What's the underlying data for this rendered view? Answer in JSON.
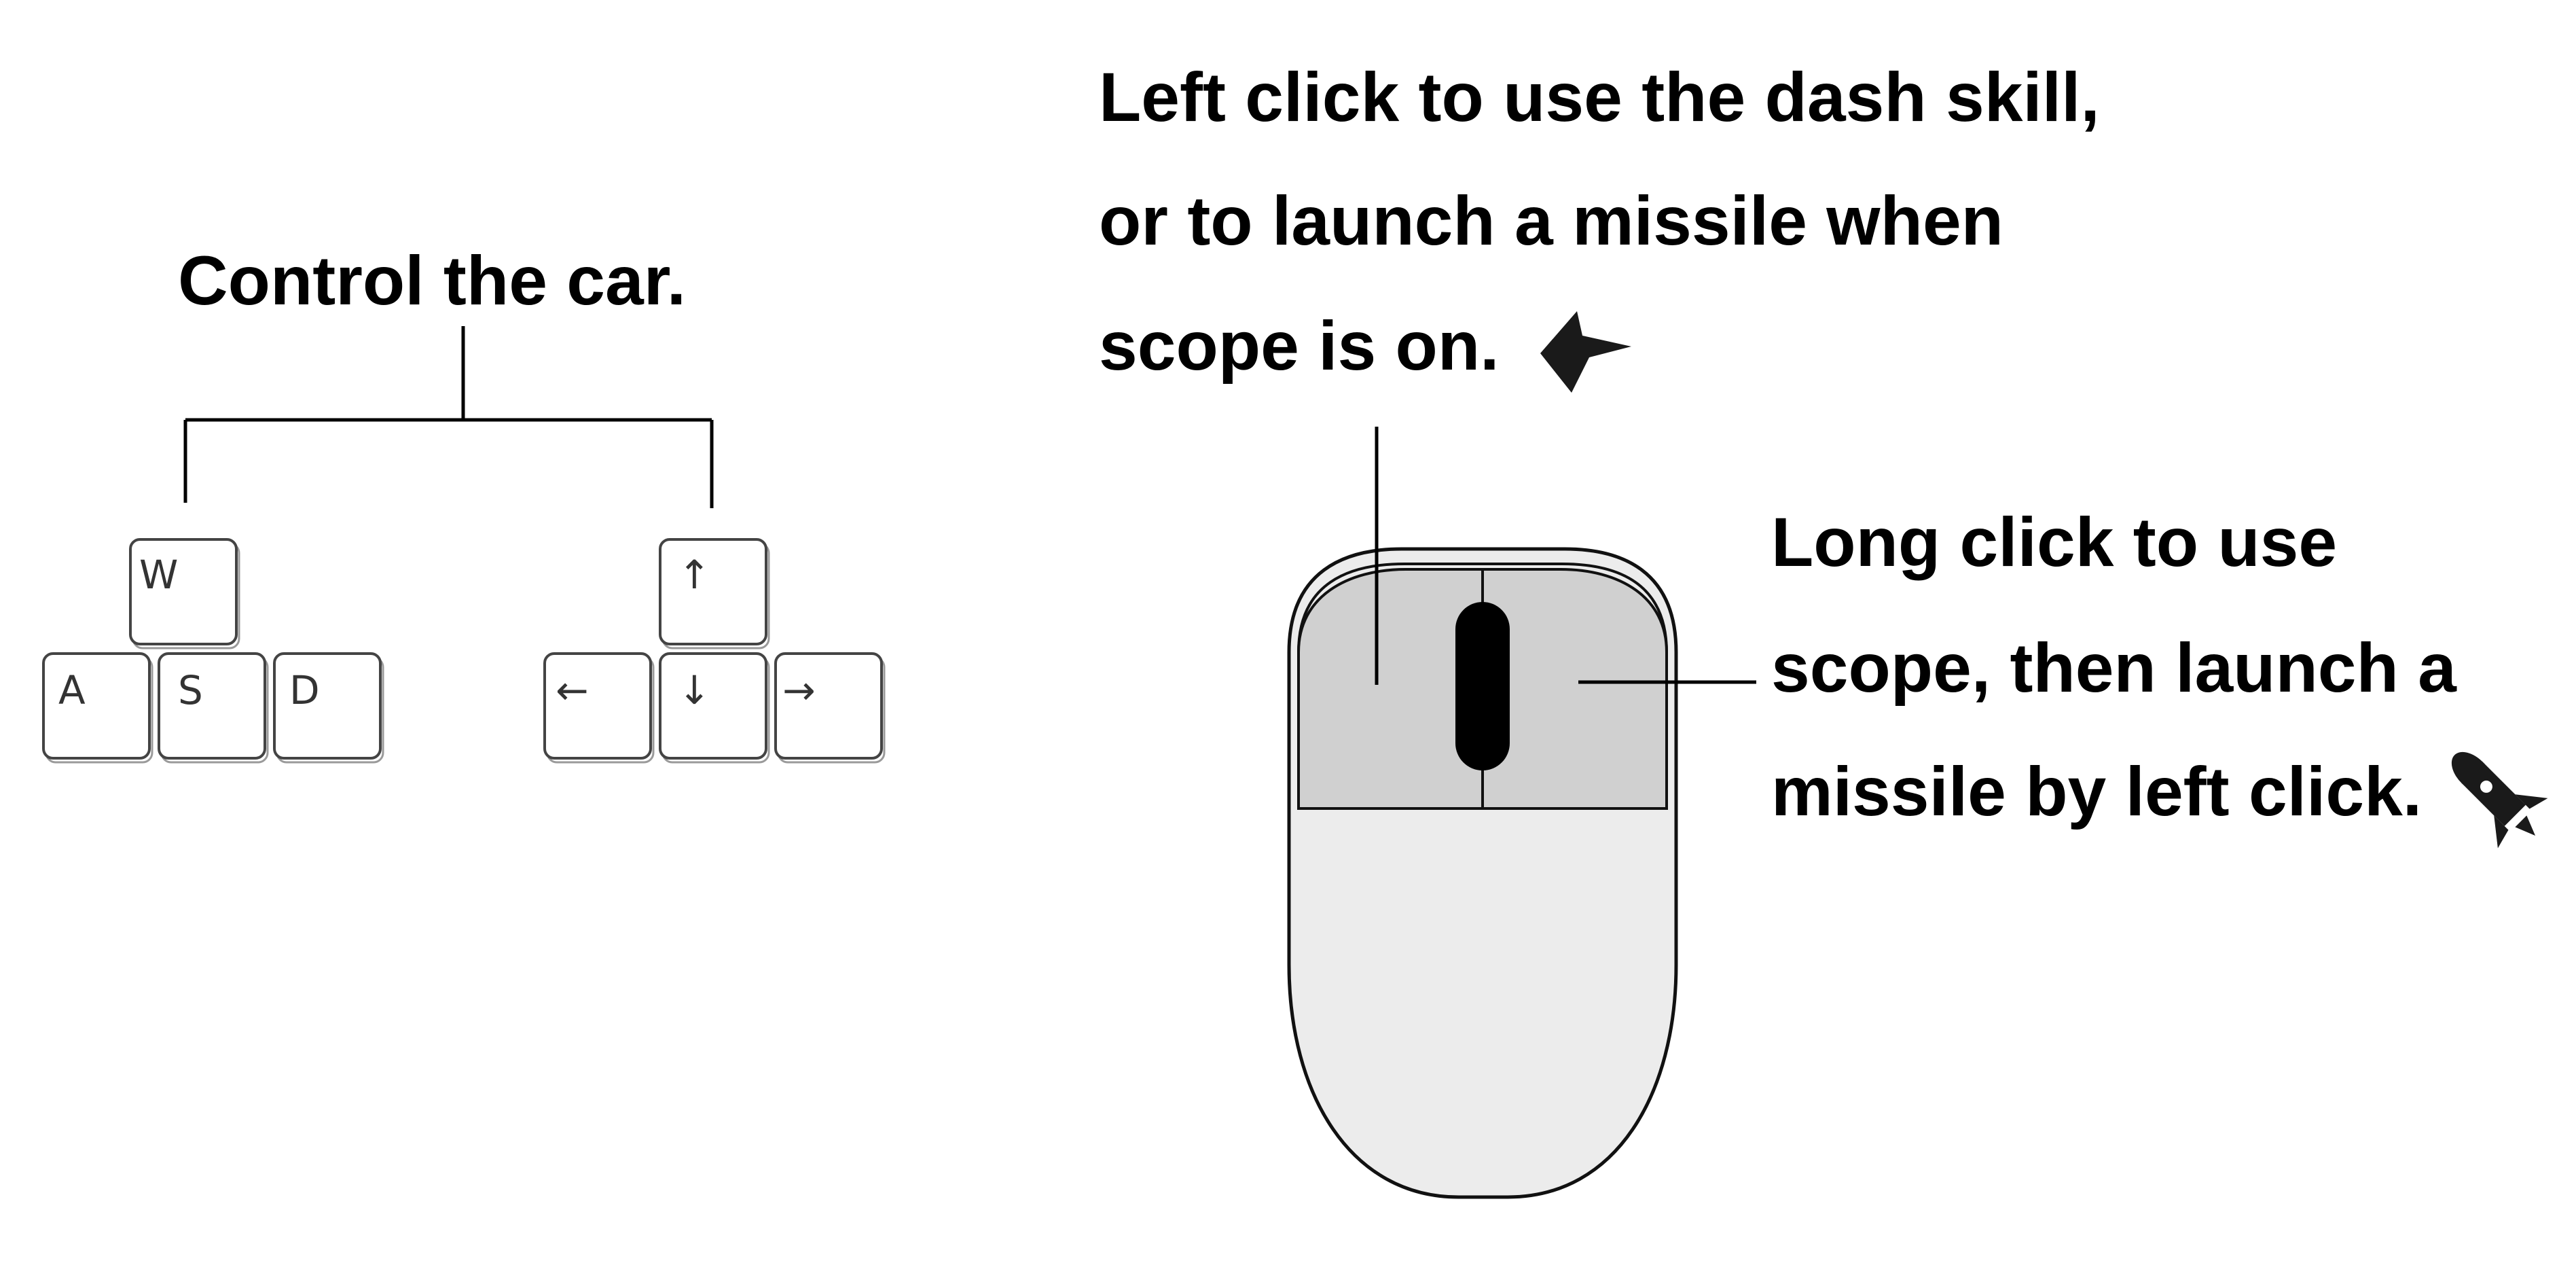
{
  "keyboard": {
    "caption": "Control the car.",
    "wasd": {
      "up": "W",
      "left": "A",
      "down": "S",
      "right": "D"
    },
    "arrows": {
      "up": "↑",
      "left": "←",
      "down": "↓",
      "right": "→"
    }
  },
  "mouse": {
    "left_caption": [
      "Left click to use the dash skill,",
      "or to launch a missile when",
      "scope is on."
    ],
    "right_caption": [
      "Long click to use",
      "scope, then launch a",
      "missile by left click."
    ]
  },
  "icons": {
    "dash": "dash-arrow-icon",
    "missile": "missile-icon"
  },
  "colors": {
    "text": "#000000",
    "mouse_buttons": "#d0d0d0",
    "mouse_body": "#ececec",
    "scroll_wheel": "#000000"
  }
}
